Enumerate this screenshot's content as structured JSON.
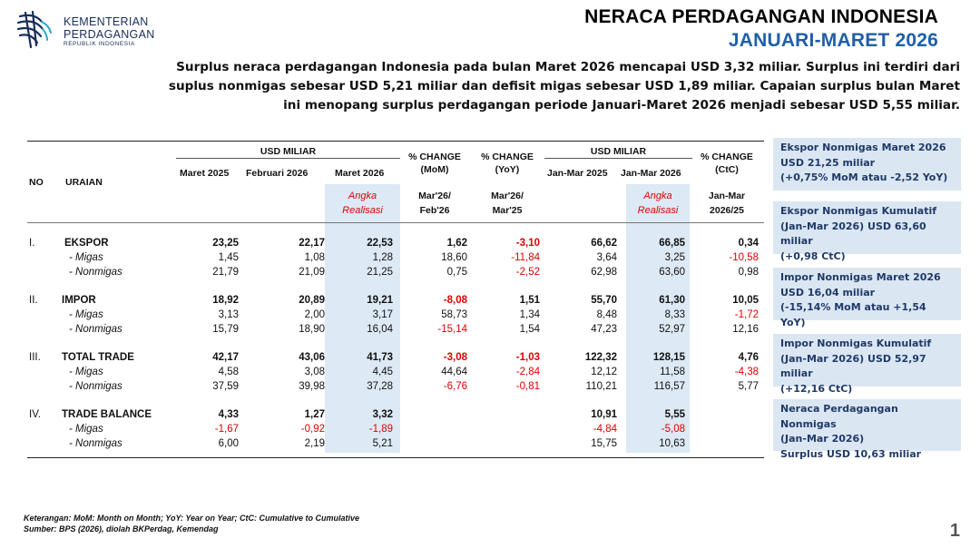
{
  "logo": {
    "line1": "KEMENTERIAN",
    "line2": "PERDAGANGAN",
    "line3": "REPUBLIK INDONESIA",
    "color": "#1a2e5a"
  },
  "title": {
    "line1": "NERACA PERDAGANGAN INDONESIA",
    "line2": "JANUARI-MARET 2026",
    "accent": "#1f5fa8"
  },
  "summary": "Surplus neraca perdagangan Indonesia pada bulan Maret 2026 mencapai USD 3,32 miliar.  Surplus ini terdiri dari suplus nonmigas sebesar USD 5,21 miliar dan defisit migas sebesar USD 1,89 miliar. Capaian surplus bulan Maret ini menopang surplus perdagangan periode Januari-Maret 2026 menjadi sebesar USD 5,55 miliar.",
  "table": {
    "h_no": "NO",
    "h_uraian": "URAIAN",
    "h_usd1": "USD MILIAR",
    "h_usd2": "USD MILIAR",
    "h_mom": "% CHANGE\n(MoM)",
    "h_yoy": "% CHANGE\n(YoY)",
    "h_ctc": "% CHANGE\n(CtC)",
    "cols": [
      "Maret 2025",
      "Februari 2026",
      "Maret 2026",
      "Jan-Mar  2025",
      "Jan-Mar 2026"
    ],
    "angka": "Angka\nRealisasi",
    "angka2": "Angka\nRealisasi",
    "mom_sub": "Mar'26/\nFeb'26",
    "yoy_sub": "Mar'26/\nMar'25",
    "ctc_sub": "Jan-Mar\n2026/25",
    "sections": [
      {
        "no": "I.",
        "title": "EKSPOR",
        "rows": [
          {
            "label": "",
            "v": [
              "23,25",
              "22,17",
              "22,53",
              "1,62",
              "-3,10",
              "66,62",
              "66,85",
              "0,34"
            ]
          },
          {
            "label": "- Migas",
            "v": [
              "1,45",
              "1,08",
              "1,28",
              "18,60",
              "-11,84",
              "3,64",
              "3,25",
              "-10,58"
            ]
          },
          {
            "label": "- Nonmigas",
            "v": [
              "21,79",
              "21,09",
              "21,25",
              "0,75",
              "-2,52",
              "62,98",
              "63,60",
              "0,98"
            ]
          }
        ]
      },
      {
        "no": "II.",
        "title": "IMPOR",
        "rows": [
          {
            "label": "",
            "v": [
              "18,92",
              "20,89",
              "19,21",
              "-8,08",
              "1,51",
              "55,70",
              "61,30",
              "10,05"
            ]
          },
          {
            "label": "- Migas",
            "v": [
              "3,13",
              "2,00",
              "3,17",
              "58,73",
              "1,34",
              "8,48",
              "8,33",
              "-1,72"
            ]
          },
          {
            "label": "- Nonmigas",
            "v": [
              "15,79",
              "18,90",
              "16,04",
              "-15,14",
              "1,54",
              "47,23",
              "52,97",
              "12,16"
            ]
          }
        ]
      },
      {
        "no": "III.",
        "title": "TOTAL TRADE",
        "rows": [
          {
            "label": "",
            "v": [
              "42,17",
              "43,06",
              "41,73",
              "-3,08",
              "-1,03",
              "122,32",
              "128,15",
              "4,76"
            ]
          },
          {
            "label": "- Migas",
            "v": [
              "4,58",
              "3,08",
              "4,45",
              "44,64",
              "-2,84",
              "12,12",
              "11,58",
              "-4,38"
            ]
          },
          {
            "label": "- Nonmigas",
            "v": [
              "37,59",
              "39,98",
              "37,28",
              "-6,76",
              "-0,81",
              "110,21",
              "116,57",
              "5,77"
            ]
          }
        ]
      },
      {
        "no": "IV.",
        "title": "TRADE BALANCE",
        "rows": [
          {
            "label": "",
            "v": [
              "4,33",
              "1,27",
              "3,32",
              "",
              "",
              "10,91",
              "5,55",
              ""
            ]
          },
          {
            "label": "- Migas",
            "v": [
              "-1,67",
              "-0,92",
              "-1,89",
              "",
              "",
              "-4,84",
              "-5,08",
              ""
            ]
          },
          {
            "label": "- Nonmigas",
            "v": [
              "6,00",
              "2,19",
              "5,21",
              "",
              "",
              "15,75",
              "10,63",
              ""
            ]
          }
        ]
      }
    ]
  },
  "sideboxes": [
    "Ekspor Nonmigas Maret 2026\nUSD 21,25 miliar\n(+0,75% MoM atau -2,52 YoY)",
    "Ekspor Nonmigas Kumulatif\n(Jan-Mar 2026) USD 63,60 miliar\n(+0,98 CtC)",
    "Impor Nonmigas Maret 2026\nUSD 16,04 miliar\n(-15,14% MoM atau +1,54 YoY)",
    "Impor Nonmigas Kumulatif\n(Jan-Mar 2026) USD 52,97 miliar\n(+12,16 CtC)",
    "Neraca Perdagangan Nonmigas\n(Jan-Mar 2026)\nSurplus USD 10,63 miliar"
  ],
  "footer": {
    "keterangan": "Keterangan: MoM: Month on Month; YoY: Year on Year; CtC: Cumulative to Cumulative",
    "sumber": "Sumber: BPS (2026), diolah BKPerdag, Kemendag"
  },
  "page_number": "1",
  "colors": {
    "negative": "#e00000",
    "highlight": "#dde9f5",
    "sidebox": "#dbe6f3",
    "sidebox_text": "#1f3a68"
  }
}
